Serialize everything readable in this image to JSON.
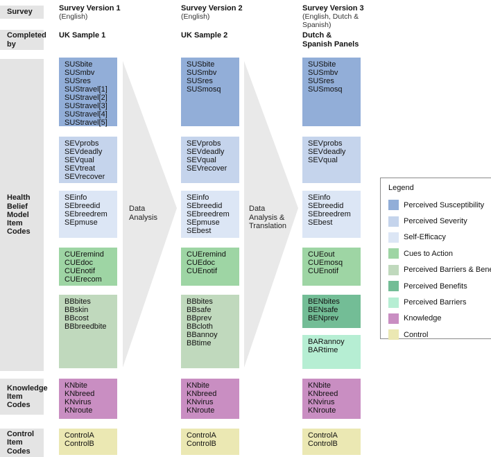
{
  "colors": {
    "perceived_susceptibility": "#92aed8",
    "perceived_severity": "#c5d4ec",
    "self_efficacy": "#dce6f5",
    "cues_to_action": "#9ed5a4",
    "perceived_barriers_benefits": "#c0d9bd",
    "perceived_benefits": "#73bd96",
    "perceived_barriers": "#b6eed3",
    "knowledge": "#c98ec2",
    "control": "#ebe8b3"
  },
  "row_labels": [
    {
      "id": "survey",
      "label": "Survey"
    },
    {
      "id": "completed-by",
      "label": "Completed\nby"
    },
    {
      "id": "hbm-item-codes",
      "label": "Health\nBelief\nModel\nItem\nCodes"
    },
    {
      "id": "knowledge-item-codes",
      "label": "Knowledge\nItem\nCodes"
    },
    {
      "id": "control-item-codes",
      "label": "Control\nItem\nCodes"
    }
  ],
  "columns": [
    {
      "id": "survey-version-1",
      "title": "Survey Version 1",
      "subtitle": "(English)",
      "completed_by": "UK Sample 1",
      "boxes": [
        {
          "type": "perceived_susceptibility",
          "items": [
            "SUSbite",
            "SUSmbv",
            "SUSres",
            "SUStravel[1]",
            "SUStravel[2]",
            "SUStravel[3]",
            "SUStravel[4]",
            "SUStravel[5]"
          ]
        },
        {
          "type": "perceived_severity",
          "items": [
            "SEVprobs",
            "SEVdeadly",
            "SEVqual",
            "SEVtreat",
            "SEVrecover"
          ]
        },
        {
          "type": "self_efficacy",
          "items": [
            "SEinfo",
            "SEbreedid",
            "SEbreedrem",
            "SEpmuse"
          ]
        },
        {
          "type": "cues_to_action",
          "items": [
            "CUEremind",
            "CUEdoc",
            "CUEnotif",
            "CUErecom"
          ]
        },
        {
          "type": "perceived_barriers_benefits",
          "items": [
            "BBbites",
            "BBskin",
            "BBcost",
            "BBbreedbite"
          ]
        },
        {
          "type": "knowledge",
          "items": [
            "KNbite",
            "KNbreed",
            "KNvirus",
            "KNroute"
          ]
        },
        {
          "type": "control",
          "items": [
            "ControlA",
            "ControlB"
          ]
        }
      ]
    },
    {
      "id": "survey-version-2",
      "title": "Survey Version 2",
      "subtitle": "(English)",
      "completed_by": "UK Sample 2",
      "boxes": [
        {
          "type": "perceived_susceptibility",
          "items": [
            "SUSbite",
            "SUSmbv",
            "SUSres",
            "SUSmosq"
          ]
        },
        {
          "type": "perceived_severity",
          "items": [
            "SEVprobs",
            "SEVdeadly",
            "SEVqual",
            "SEVrecover"
          ]
        },
        {
          "type": "self_efficacy",
          "items": [
            "SEinfo",
            "SEbreedid",
            "SEbreedrem",
            "SEpmuse",
            "SEbest"
          ]
        },
        {
          "type": "cues_to_action",
          "items": [
            "CUEremind",
            "CUEdoc",
            "CUEnotif"
          ]
        },
        {
          "type": "perceived_barriers_benefits",
          "items": [
            "BBbites",
            "BBsafe",
            "BBprev",
            "BBcloth",
            "BBannoy",
            "BBtime"
          ]
        },
        {
          "type": "knowledge",
          "items": [
            "KNbite",
            "KNbreed",
            "KNvirus",
            "KNroute"
          ]
        },
        {
          "type": "control",
          "items": [
            "ControlA",
            "ControlB"
          ]
        }
      ]
    },
    {
      "id": "survey-version-3",
      "title": "Survey Version 3",
      "subtitle": "(English, Dutch &\nSpanish)",
      "completed_by": "Dutch &\nSpanish Panels",
      "boxes": [
        {
          "type": "perceived_susceptibility",
          "items": [
            "SUSbite",
            "SUSmbv",
            "SUSres",
            "SUSmosq"
          ]
        },
        {
          "type": "perceived_severity",
          "items": [
            "SEVprobs",
            "SEVdeadly",
            "SEVqual"
          ]
        },
        {
          "type": "self_efficacy",
          "items": [
            "SEinfo",
            "SEbreedid",
            "SEbreedrem",
            "SEbest"
          ]
        },
        {
          "type": "cues_to_action",
          "items": [
            "CUEout",
            "CUEmosq",
            "CUEnotif"
          ]
        },
        {
          "type": "perceived_benefits",
          "items": [
            "BENbites",
            "BENsafe",
            "BENprev"
          ]
        },
        {
          "type": "perceived_barriers",
          "items": [
            "BARannoy",
            "BARtime"
          ]
        },
        {
          "type": "knowledge",
          "items": [
            "KNbite",
            "KNbreed",
            "KNvirus",
            "KNroute"
          ]
        },
        {
          "type": "control",
          "items": [
            "ControlA",
            "ControlB"
          ]
        }
      ]
    }
  ],
  "arrows": [
    {
      "label": "Data\nAnalysis"
    },
    {
      "label": "Data\nAnalysis &\nTranslation"
    }
  ],
  "legend": {
    "title": "Legend",
    "entries": [
      {
        "label": "Perceived Susceptibility",
        "color": "perceived_susceptibility"
      },
      {
        "label": "Perceived Severity",
        "color": "perceived_severity"
      },
      {
        "label": "Self-Efficacy",
        "color": "self_efficacy"
      },
      {
        "label": "Cues to Action",
        "color": "cues_to_action"
      },
      {
        "label": "Perceived Barriers & Benefits",
        "color": "perceived_barriers_benefits"
      },
      {
        "label": "Perceived Benefits",
        "color": "perceived_benefits"
      },
      {
        "label": "Perceived Barriers",
        "color": "perceived_barriers"
      },
      {
        "label": "Knowledge",
        "color": "knowledge"
      },
      {
        "label": "Control",
        "color": "control"
      }
    ]
  }
}
